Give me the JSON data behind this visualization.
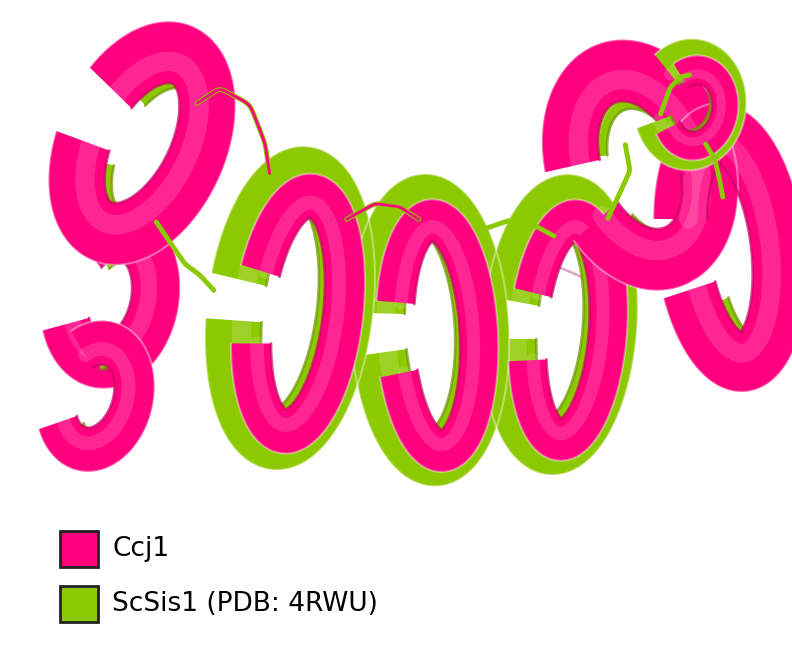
{
  "background_color": "#ffffff",
  "magenta": "#FF007F",
  "green": "#8DC900",
  "green_dark": "#6B9600",
  "magenta_dark": "#CC0066",
  "legend_items": [
    {
      "label": "Ccj1",
      "color": "#FF007F",
      "edge": "#222222"
    },
    {
      "label": "ScSis1 (PDB: 4RWU)",
      "color": "#8DC900",
      "edge": "#222222"
    }
  ],
  "legend_fontsize": 19,
  "figsize": [
    7.92,
    6.49
  ],
  "dpi": 100
}
